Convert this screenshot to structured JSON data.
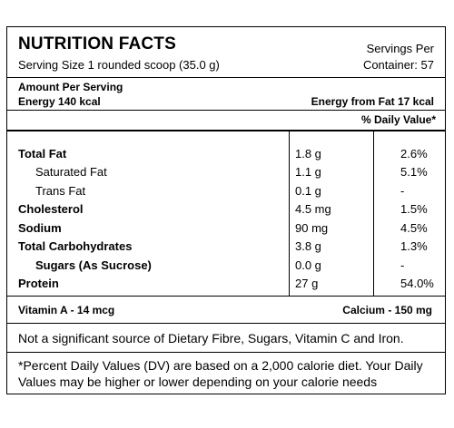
{
  "header": {
    "title": "NUTRITION FACTS",
    "serving_size": "Serving Size 1 rounded scoop (35.0 g)",
    "servings_per_line1": "Servings Per",
    "servings_per_line2": "Container: 57"
  },
  "amount": {
    "label": "Amount Per Serving",
    "energy": "Energy 140 kcal",
    "energy_from_fat": "Energy from Fat 17 kcal"
  },
  "daily_value_header": "% Daily Value*",
  "nutrients": [
    {
      "name": "Total Fat",
      "amount": "1.8 g",
      "dv": "2.6%"
    },
    {
      "name": "Saturated Fat",
      "amount": "1.1 g",
      "dv": "5.1%"
    },
    {
      "name": "Trans Fat",
      "amount": "0.1 g",
      "dv": "-"
    },
    {
      "name": "Cholesterol",
      "amount": "4.5 mg",
      "dv": "1.5%"
    },
    {
      "name": "Sodium",
      "amount": "90 mg",
      "dv": "4.5%"
    },
    {
      "name": "Total Carbohydrates",
      "amount": "3.8 g",
      "dv": "1.3%"
    },
    {
      "name": "Sugars (As Sucrose)",
      "amount": "0.0 g",
      "dv": "-"
    },
    {
      "name": "Protein",
      "amount": "27 g",
      "dv": "54.0%"
    }
  ],
  "vitamins": {
    "vitamin_a": "Vitamin A - 14 mcg",
    "calcium": "Calcium - 150 mg"
  },
  "notes": {
    "not_significant": "Not a significant source of Dietary Fibre, Sugars, Vitamin C and Iron.",
    "footnote": "*Percent Daily Values (DV) are based on a 2,000 calorie diet. Your Daily Values may be higher or lower depending on your calorie needs"
  }
}
